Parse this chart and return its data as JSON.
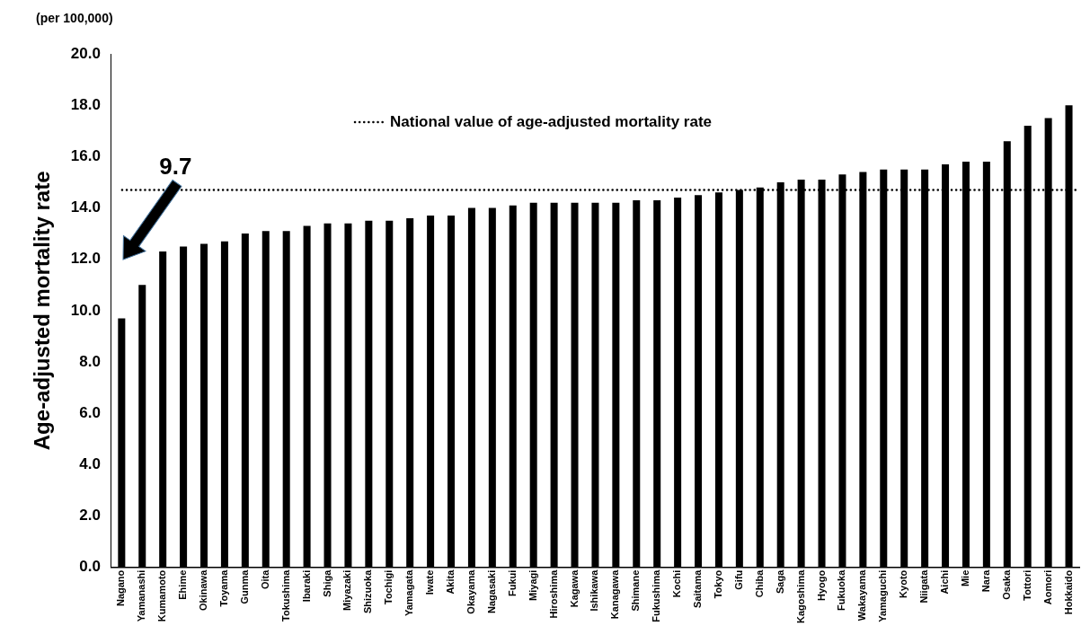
{
  "chart_data": {
    "type": "bar",
    "ylabel": "Age-adjusted mortality rate",
    "categories": [
      "Nagano",
      "Yamanashi",
      "Kumamoto",
      "Ehime",
      "Okinawa",
      "Toyama",
      "Gunma",
      "Oita",
      "Tokushima",
      "Ibaraki",
      "Shiga",
      "Miyazaki",
      "Shizuoka",
      "Tochigi",
      "Yamagata",
      "Iwate",
      "Akita",
      "Okayama",
      "Nagasaki",
      "Fukui",
      "Miyagi",
      "Hiroshima",
      "Kagawa",
      "Ishikawa",
      "Kanagawa",
      "Shimane",
      "Fukushima",
      "Kochi",
      "Saitama",
      "Tokyo",
      "Gifu",
      "Chiba",
      "Saga",
      "Kagoshima",
      "Hyogo",
      "Fukuoka",
      "Wakayama",
      "Yamaguchi",
      "Kyoto",
      "Niigata",
      "Aichi",
      "Mie",
      "Nara",
      "Osaka",
      "Tottori",
      "Aomori",
      "Hokkaido"
    ],
    "values": [
      9.7,
      11.0,
      12.3,
      12.5,
      12.6,
      12.7,
      13.0,
      13.1,
      13.1,
      13.3,
      13.4,
      13.4,
      13.5,
      13.5,
      13.6,
      13.7,
      13.7,
      14.0,
      14.0,
      14.1,
      14.2,
      14.2,
      14.2,
      14.2,
      14.2,
      14.3,
      14.3,
      14.4,
      14.5,
      14.6,
      14.7,
      14.8,
      15.0,
      15.1,
      15.1,
      15.3,
      15.4,
      15.5,
      15.5,
      15.5,
      15.7,
      15.8,
      15.8,
      16.6,
      17.2,
      17.5,
      18.0
    ],
    "color": "#000000",
    "ylim": [
      0,
      20
    ],
    "yticks": [
      {
        "value": 0,
        "label": "0.0"
      },
      {
        "value": 2,
        "label": "2.0"
      },
      {
        "value": 4,
        "label": "4.0"
      },
      {
        "value": 6,
        "label": "6.0"
      },
      {
        "value": 8,
        "label": "8.0"
      },
      {
        "value": 10,
        "label": "10.0"
      },
      {
        "value": 12,
        "label": "12.0"
      },
      {
        "value": 14,
        "label": "14.0"
      },
      {
        "value": 16,
        "label": "16.0"
      },
      {
        "value": 18,
        "label": "18.0"
      },
      {
        "value": 20,
        "label": "20.0"
      }
    ],
    "grid": false,
    "ref_lines": [
      {
        "axis": "y",
        "value": 14.7,
        "label": "National value of age-adjusted mortality rate",
        "line_style": "dotted"
      }
    ],
    "annotations": [
      "(per 100,000)",
      "9.7"
    ]
  }
}
